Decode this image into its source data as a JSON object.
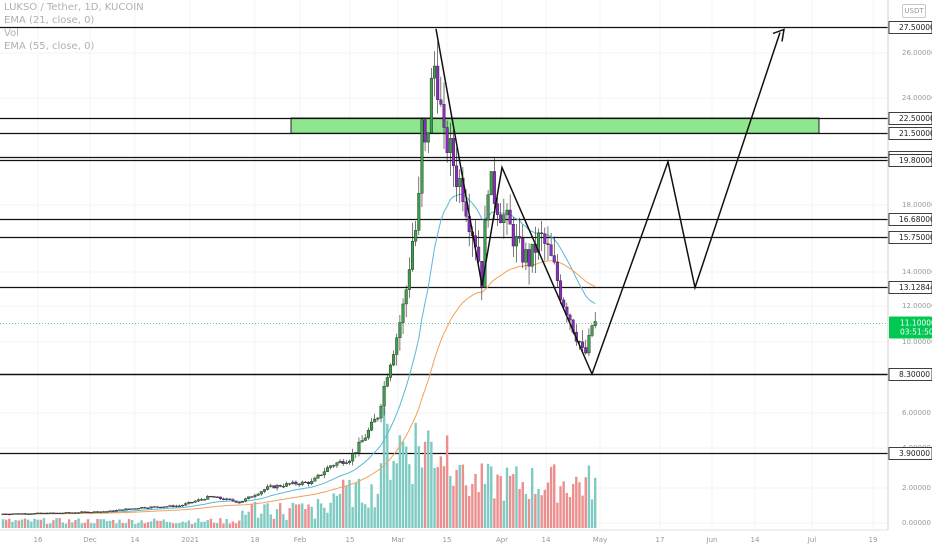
{
  "header": {
    "symbol": "LUKSO / Tether, 1D, KUCOIN",
    "vol": "Vol",
    "ema21": "EMA (21, close, 0)",
    "ema55": "EMA (55, close, 0)"
  },
  "currency": "USDT",
  "price_axis": {
    "ticks": [
      "26.00000",
      "24.00000",
      "18.00000",
      "14.00000",
      "12.00000",
      "10.00000",
      "6.00000",
      "4.00000",
      "2.00000",
      "0.00000"
    ]
  },
  "time_axis": {
    "ticks": [
      "16",
      "Dec",
      "14",
      "2021",
      "18",
      "Feb",
      "15",
      "Mar",
      "15",
      "Apr",
      "14",
      "May",
      "17",
      "Jun",
      "14",
      "Jul",
      "19"
    ]
  },
  "levels": [
    "27.50000",
    "22.50000",
    "21.50000",
    "19.95000",
    "19.80000",
    "16.68000",
    "15.75000",
    "13.12844",
    "8.30000",
    "3.90000"
  ],
  "current_price": {
    "price": "11.10000",
    "countdown": "03:51:50"
  },
  "colors": {
    "up": "#3aa04a",
    "down": "#8a2bc2",
    "ema21": "#5bb8d6",
    "ema55": "#f2a15c",
    "vol_up": "#7fcbc3",
    "vol_down": "#eb8f8f",
    "zone": "#8fe68f",
    "price_badge": "#00c853"
  },
  "chart_data": {
    "type": "candlestick",
    "symbol": "LUKSO / Tether, 1D, KUCOIN",
    "y_ticks": [
      26,
      24,
      18,
      14,
      12,
      10,
      6,
      4,
      2,
      0
    ],
    "horizontal_levels": [
      27.5,
      22.5,
      21.5,
      19.95,
      19.8,
      16.68,
      15.75,
      13.12844,
      8.3,
      3.9
    ],
    "supply_zone": [
      21.5,
      22.5
    ],
    "current_price": 11.1,
    "indicators": [
      "EMA 21",
      "EMA 55",
      "Volume"
    ]
  }
}
